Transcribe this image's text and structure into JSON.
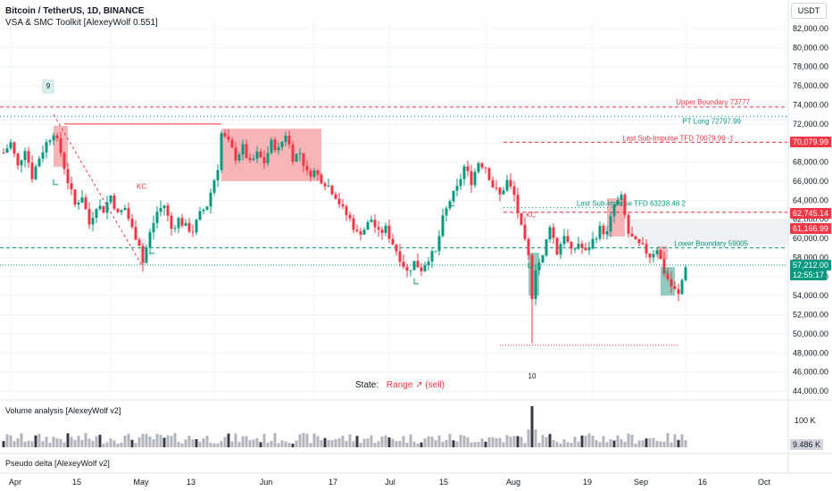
{
  "header": {
    "symbol": "Bitcoin / TetherUS, 1D, BINANCE",
    "indicator": "VSA & SMC Toolkit [AlexeyWolf 0.551]",
    "currency_button": "USDT"
  },
  "panes": {
    "volume_title": "Volume analysis [AlexeyWolf v2]",
    "delta_title": "Pseudo delta [AlexeyWolf v2]"
  },
  "state": {
    "label": "State:",
    "value": "Range ↗ (sell)"
  },
  "tags": {
    "last_impulse_price": "70,079.99",
    "resistance_price": "62,745.14",
    "level_price": "61,166.99",
    "current_price": "57,212.00",
    "countdown": "12:55:17",
    "volume_value": "9.486 K"
  },
  "colors": {
    "bull": "#089981",
    "bear": "#f23645",
    "zone_bear": "#f7a8ac",
    "zone_bull": "#7cc3b2",
    "grid": "#f0f3fa"
  },
  "chart_data": {
    "type": "candlestick",
    "title": "Bitcoin / TetherUS, 1D, BINANCE",
    "ylim": [
      44000,
      83000
    ],
    "y_ticks": [
      44000,
      46000,
      48000,
      50000,
      52000,
      54000,
      56000,
      58000,
      60000,
      62000,
      64000,
      66000,
      68000,
      70000,
      72000,
      74000,
      76000,
      78000,
      80000,
      82000
    ],
    "x_ticks": [
      "Apr",
      "15",
      "May",
      "13",
      "Jun",
      "17",
      "Jul",
      "15",
      "Aug",
      "19",
      "Sep",
      "16",
      "Oct"
    ],
    "anchors": [
      [
        0,
        69000
      ],
      [
        2,
        70000
      ],
      [
        4,
        67500
      ],
      [
        6,
        69500
      ],
      [
        8,
        66500
      ],
      [
        10,
        68500
      ],
      [
        12,
        70000
      ],
      [
        14,
        71200
      ],
      [
        16,
        69000
      ],
      [
        18,
        66000
      ],
      [
        20,
        63500
      ],
      [
        22,
        64500
      ],
      [
        24,
        61500
      ],
      [
        26,
        63500
      ],
      [
        28,
        63000
      ],
      [
        30,
        64500
      ],
      [
        32,
        62500
      ],
      [
        34,
        63200
      ],
      [
        36,
        61000
      ],
      [
        38,
        59500
      ],
      [
        39,
        57500
      ],
      [
        41,
        60500
      ],
      [
        43,
        62800
      ],
      [
        45,
        63500
      ],
      [
        47,
        61000
      ],
      [
        49,
        62000
      ],
      [
        51,
        61200
      ],
      [
        53,
        60800
      ],
      [
        55,
        62500
      ],
      [
        57,
        63500
      ],
      [
        60,
        67500
      ],
      [
        61,
        71000
      ],
      [
        63,
        70000
      ],
      [
        65,
        68500
      ],
      [
        67,
        69500
      ],
      [
        69,
        67800
      ],
      [
        71,
        68800
      ],
      [
        73,
        68000
      ],
      [
        75,
        70000
      ],
      [
        77,
        69300
      ],
      [
        79,
        71000
      ],
      [
        81,
        68500
      ],
      [
        83,
        69000
      ],
      [
        85,
        66800
      ],
      [
        87,
        67000
      ],
      [
        89,
        66200
      ],
      [
        91,
        65500
      ],
      [
        93,
        64500
      ],
      [
        95,
        63000
      ],
      [
        97,
        62000
      ],
      [
        99,
        60500
      ],
      [
        101,
        61000
      ],
      [
        103,
        62000
      ],
      [
        105,
        60500
      ],
      [
        107,
        61000
      ],
      [
        109,
        59500
      ],
      [
        111,
        58000
      ],
      [
        113,
        56500
      ],
      [
        115,
        57500
      ],
      [
        117,
        56800
      ],
      [
        119,
        58000
      ],
      [
        121,
        58500
      ],
      [
        123,
        62000
      ],
      [
        125,
        64000
      ],
      [
        127,
        65200
      ],
      [
        129,
        67500
      ],
      [
        131,
        66000
      ],
      [
        133,
        68000
      ],
      [
        135,
        67500
      ],
      [
        137,
        65500
      ],
      [
        139,
        64500
      ],
      [
        141,
        66000
      ],
      [
        143,
        64500
      ],
      [
        145,
        61000
      ],
      [
        147,
        58000
      ],
      [
        148,
        54000
      ],
      [
        149,
        57000
      ],
      [
        151,
        58000
      ],
      [
        153,
        61500
      ],
      [
        155,
        58500
      ],
      [
        157,
        60500
      ],
      [
        159,
        58500
      ],
      [
        161,
        59500
      ],
      [
        163,
        58500
      ],
      [
        165,
        59800
      ],
      [
        167,
        61000
      ],
      [
        169,
        60500
      ],
      [
        171,
        63500
      ],
      [
        173,
        64200
      ],
      [
        175,
        60500
      ],
      [
        177,
        59500
      ],
      [
        179,
        59000
      ],
      [
        181,
        58200
      ],
      [
        183,
        59000
      ],
      [
        185,
        56500
      ],
      [
        187,
        55000
      ],
      [
        189,
        54000
      ],
      [
        191,
        57212
      ]
    ],
    "upper_boundary": 73777,
    "pt_long": 72797.99,
    "last_sub_impulse_high": 70079.99,
    "last_sub_impulse_low": 63238.48,
    "lower_boundary": 59005,
    "resistance": 62745.14,
    "level": 61166.99,
    "current": 57212,
    "annotations": [
      "Upper Boundary 73777",
      "PT Long 72797.99",
      "Last Sub-Impulse TFD 70079.99 -1",
      "Last Sub-Impulse TFD 63238.48 2",
      "Lower Boundary 59005",
      "KC",
      "KC",
      "9",
      "10"
    ],
    "volume_axis_label": "100 K"
  }
}
